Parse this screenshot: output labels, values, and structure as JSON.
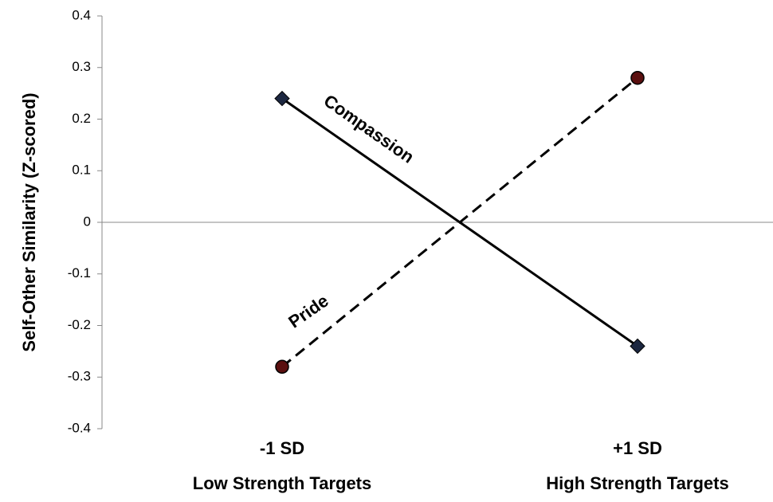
{
  "chart_data": {
    "type": "line",
    "y_label": "Self-Other Similarity (Z-scored)",
    "categories": [
      [
        "-1 SD",
        "Low Strength Targets"
      ],
      [
        "+1 SD",
        "High Strength Targets"
      ]
    ],
    "series": [
      {
        "name": "Compassion",
        "color": "#000000",
        "marker": "diamond",
        "marker_color": "#1c2740",
        "dash": false,
        "values": [
          0.24,
          -0.24
        ]
      },
      {
        "name": "Pride",
        "color": "#000000",
        "marker": "circle",
        "marker_color": "#5a0f0f",
        "dash": true,
        "values": [
          -0.28,
          0.28
        ]
      }
    ],
    "ylim": [
      -0.4,
      0.4
    ],
    "yticks": [
      -0.4,
      -0.3,
      -0.2,
      -0.1,
      0,
      0.1,
      0.2,
      0.3,
      0.4
    ]
  }
}
